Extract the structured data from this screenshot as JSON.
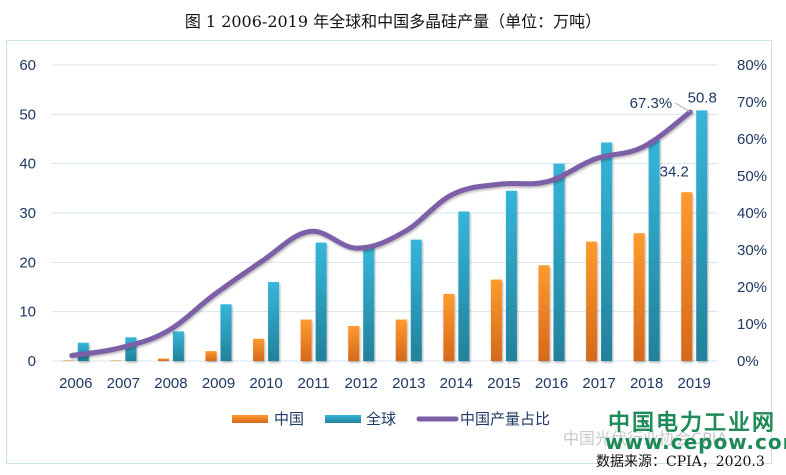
{
  "title": "图  1 2006-2019 年全球和中国多晶硅产量（单位：万吨）",
  "source_note": "数据来源：CPIA，2020.3",
  "watermark": "中国光伏行业协会CPIA",
  "brand": {
    "name": "中国电力工业网",
    "url": "www.cepow.com"
  },
  "colors": {
    "china": "#f08a24",
    "global": "#2aa6c6",
    "share": "#7b5fa6",
    "axis_text": "#1f3864",
    "grid": "#d6e4ef"
  },
  "chart_data": {
    "type": "bar",
    "title": "图  1 2006-2019 年全球和中国多晶硅产量（单位：万吨）",
    "categories": [
      "2006",
      "2007",
      "2008",
      "2009",
      "2010",
      "2011",
      "2012",
      "2013",
      "2014",
      "2015",
      "2016",
      "2017",
      "2018",
      "2019"
    ],
    "series": [
      {
        "name": "中国",
        "type": "bar",
        "axis": "left",
        "values": [
          0.1,
          0.1,
          0.5,
          2.0,
          4.5,
          8.4,
          7.1,
          8.4,
          13.6,
          16.5,
          19.4,
          24.2,
          25.9,
          34.2
        ]
      },
      {
        "name": "全球",
        "type": "bar",
        "axis": "left",
        "values": [
          3.7,
          4.8,
          6.0,
          11.5,
          16.0,
          24.0,
          23.5,
          24.6,
          30.3,
          34.5,
          40.0,
          44.3,
          44.8,
          50.8
        ]
      },
      {
        "name": "中国产量占比",
        "type": "line",
        "axis": "right",
        "values": [
          1.5,
          3.5,
          8.0,
          18.0,
          27.0,
          35.0,
          30.5,
          35.0,
          45.0,
          47.8,
          48.5,
          54.6,
          57.8,
          67.3
        ]
      }
    ],
    "y_left": {
      "min": 0,
      "max": 60,
      "ticks": [
        "0",
        "10",
        "20",
        "30",
        "40",
        "50",
        "60"
      ]
    },
    "y_right": {
      "min": 0,
      "max": 80,
      "ticks": [
        "0%",
        "10%",
        "20%",
        "30%",
        "40%",
        "50%",
        "60%",
        "70%",
        "80%"
      ]
    },
    "data_labels": [
      {
        "series": "中国",
        "category": "2019",
        "text": "34.2"
      },
      {
        "series": "全球",
        "category": "2019",
        "text": "50.8"
      },
      {
        "series": "中国产量占比",
        "category": "2019",
        "text": "67.3%"
      }
    ],
    "grid": true,
    "legend": {
      "position": "bottom",
      "items": [
        "中国",
        "全球",
        "中国产量占比"
      ]
    }
  }
}
